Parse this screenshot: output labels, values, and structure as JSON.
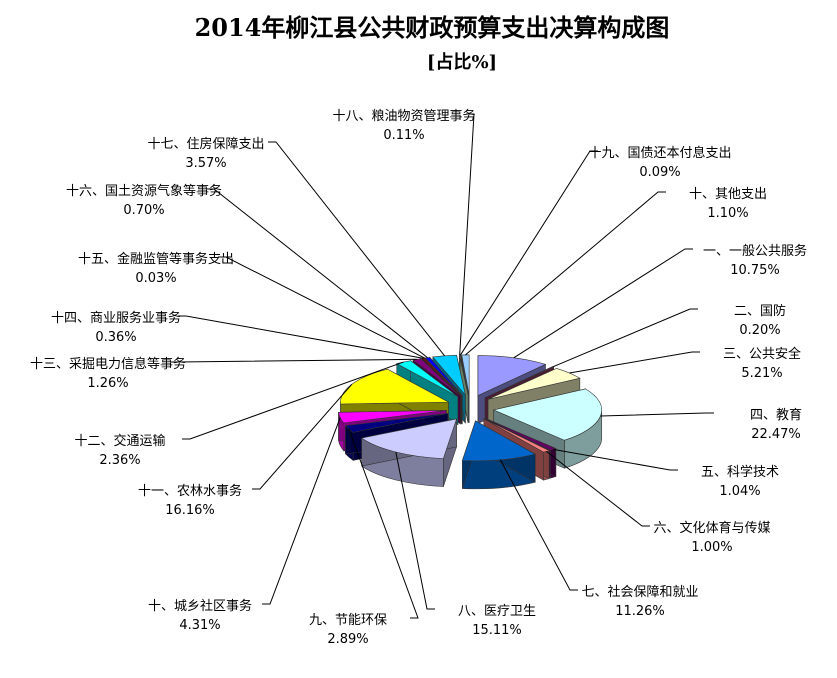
{
  "chart_data": {
    "type": "pie",
    "title": "2014年柳江县公共财政预算支出决算构成图",
    "subtitle": "[占比%]",
    "slices": [
      {
        "name": "一、一般公共服务",
        "value": 10.75,
        "label": "10.75%",
        "color": "#9999ff"
      },
      {
        "name": "二、国防",
        "value": 0.2,
        "label": "0.20%",
        "color": "#993366"
      },
      {
        "name": "三、公共安全",
        "value": 5.21,
        "label": "5.21%",
        "color": "#ffffcc"
      },
      {
        "name": "四、教育",
        "value": 22.47,
        "label": "22.47%",
        "color": "#ccffff"
      },
      {
        "name": "五、科学技术",
        "value": 1.04,
        "label": "1.04%",
        "color": "#660066"
      },
      {
        "name": "六、文化体育与传媒",
        "value": 1.0,
        "label": "1.00%",
        "color": "#ff8080"
      },
      {
        "name": "七、社会保障和就业",
        "value": 11.26,
        "label": "11.26%",
        "color": "#0066cc"
      },
      {
        "name": "八、医疗卫生",
        "value": 15.11,
        "label": "15.11%",
        "color": "#ccccff"
      },
      {
        "name": "九、节能环保",
        "value": 2.89,
        "label": "2.89%",
        "color": "#000080"
      },
      {
        "name": "十、城乡社区事务",
        "value": 4.31,
        "label": "4.31%",
        "color": "#ff00ff"
      },
      {
        "name": "十一、农林水事务",
        "value": 16.16,
        "label": "16.16%",
        "color": "#ffff00"
      },
      {
        "name": "十二、交通运输",
        "value": 2.36,
        "label": "2.36%",
        "color": "#00ffff"
      },
      {
        "name": "十三、采掘电力信息等事务",
        "value": 1.26,
        "label": "1.26%",
        "color": "#800080"
      },
      {
        "name": "十四、商业服务业事务",
        "value": 0.36,
        "label": "0.36%",
        "color": "#800000"
      },
      {
        "name": "十五、金融监管等事务支出",
        "value": 0.03,
        "label": "0.03%",
        "color": "#008080"
      },
      {
        "name": "十六、国土资源气象等事务",
        "value": 0.7,
        "label": "0.70%",
        "color": "#0000ff"
      },
      {
        "name": "十七、住房保障支出",
        "value": 3.57,
        "label": "3.57%",
        "color": "#00ccff"
      },
      {
        "name": "十八、粮油物资管理事务",
        "value": 0.11,
        "label": "0.11%",
        "color": "#ccffcc"
      },
      {
        "name": "十九、国债还本付息支出",
        "value": 0.09,
        "label": "0.09%",
        "color": "#ffff99"
      },
      {
        "name": "十、其他支出",
        "value": 1.1,
        "label": "1.10%",
        "color": "#99ccff"
      }
    ]
  }
}
